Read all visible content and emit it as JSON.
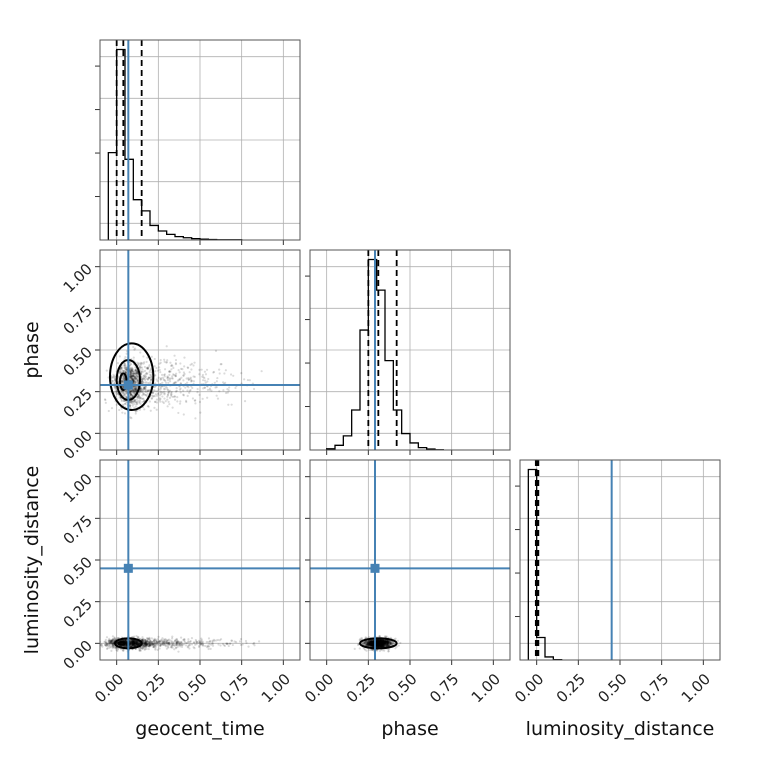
{
  "chart_data": {
    "type": "corner",
    "parameters": [
      "geocent_time",
      "phase",
      "luminosity_distance"
    ],
    "axis_labels": {
      "x": [
        "geocent_time",
        "phase",
        "luminosity_distance"
      ],
      "y": [
        "",
        "phase",
        "luminosity_distance"
      ]
    },
    "axis_range": [
      -0.1,
      1.1
    ],
    "ticks": [
      0.0,
      0.25,
      0.5,
      0.75,
      1.0
    ],
    "tick_labels": [
      "0.00",
      "0.25",
      "0.50",
      "0.75",
      "1.00"
    ],
    "grid": true,
    "truths": {
      "geocent_time": 0.07,
      "phase": 0.29,
      "luminosity_distance": 0.45
    },
    "colors": {
      "truth": "#4682b4",
      "hist": "#000000",
      "grid": "#b0b0b0",
      "points": "#000000"
    },
    "marginals": [
      {
        "parameter": "geocent_time",
        "bins": [
          -0.05,
          0.0,
          0.05,
          0.1,
          0.15,
          0.2,
          0.25,
          0.3,
          0.35,
          0.4,
          0.45,
          0.5,
          0.55,
          0.6,
          0.65,
          0.7,
          0.75
        ],
        "density": [
          0.39,
          0.85,
          0.36,
          0.18,
          0.13,
          0.065,
          0.04,
          0.025,
          0.015,
          0.01,
          0.006,
          0.004,
          0.002,
          0.001,
          0.001,
          0.001
        ],
        "quantiles": [
          0.0,
          0.04,
          0.15
        ]
      },
      {
        "parameter": "phase",
        "bins": [
          0.0,
          0.05,
          0.1,
          0.15,
          0.2,
          0.25,
          0.3,
          0.35,
          0.4,
          0.45,
          0.5,
          0.55,
          0.6,
          0.65,
          0.7
        ],
        "density": [
          0.005,
          0.02,
          0.06,
          0.17,
          0.51,
          0.81,
          0.68,
          0.38,
          0.17,
          0.07,
          0.03,
          0.01,
          0.004,
          0.001
        ],
        "quantiles": [
          0.25,
          0.31,
          0.42
        ]
      },
      {
        "parameter": "luminosity_distance",
        "bins": [
          -0.05,
          0.0,
          0.05,
          0.1,
          0.15
        ],
        "density": [
          0.93,
          0.11,
          0.015,
          0.002
        ],
        "quantiles": [
          -0.005,
          0.0,
          0.01
        ]
      }
    ],
    "joint": [
      {
        "x": "geocent_time",
        "y": "phase",
        "cloud": {
          "x_center": 0.08,
          "x_spread": 0.1,
          "x_skew": 0.18,
          "y_center": 0.3,
          "y_spread": 0.07
        },
        "contours": [
          {
            "x_center": 0.04,
            "y_center": 0.31,
            "x_radius": 0.02,
            "y_radius": 0.05
          },
          {
            "x_center": 0.07,
            "y_center": 0.32,
            "x_radius": 0.07,
            "y_radius": 0.12
          },
          {
            "x_center": 0.09,
            "y_center": 0.34,
            "x_radius": 0.13,
            "y_radius": 0.2
          }
        ]
      },
      {
        "x": "geocent_time",
        "y": "luminosity_distance",
        "cloud": {
          "x_center": 0.06,
          "x_spread": 0.12,
          "x_skew": 0.18,
          "y_center": 0.0,
          "y_spread": 0.015
        },
        "contours": [
          {
            "x_center": 0.03,
            "y_center": 0.0,
            "x_radius": 0.02,
            "y_radius": 0.008
          },
          {
            "x_center": 0.07,
            "y_center": 0.0,
            "x_radius": 0.08,
            "y_radius": 0.03
          }
        ]
      },
      {
        "x": "phase",
        "y": "luminosity_distance",
        "cloud": {
          "x_center": 0.31,
          "x_spread": 0.08,
          "x_skew": 0.0,
          "y_center": 0.0,
          "y_spread": 0.015
        },
        "contours": [
          {
            "x_center": 0.3,
            "y_center": 0.0,
            "x_radius": 0.04,
            "y_radius": 0.01
          },
          {
            "x_center": 0.31,
            "y_center": 0.0,
            "x_radius": 0.11,
            "y_radius": 0.03
          }
        ]
      }
    ]
  }
}
